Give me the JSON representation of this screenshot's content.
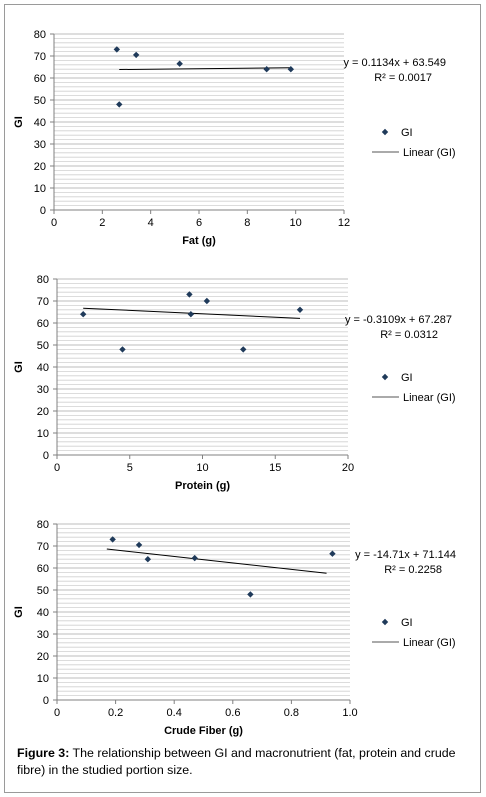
{
  "caption": {
    "label": "Figure 3:",
    "text": " The relationship between GI and macronutrient (fat, protein and crude fibre) in the studied portion size."
  },
  "chart_data": [
    {
      "type": "scatter",
      "xlabel": "Fat (g)",
      "ylabel": "GI",
      "xlim": [
        0,
        12
      ],
      "ylim": [
        0,
        80
      ],
      "x_ticks": [
        0,
        2,
        4,
        6,
        8,
        10,
        12
      ],
      "y_ticks": [
        0,
        10,
        20,
        30,
        40,
        50,
        60,
        70,
        80
      ],
      "grid": true,
      "legend_position": "right",
      "series": [
        {
          "name": "GI",
          "marker_color": "#1f3a5a",
          "points": [
            [
              2.6,
              73
            ],
            [
              3.4,
              70.5
            ],
            [
              2.7,
              48
            ],
            [
              5.2,
              66.5
            ],
            [
              8.8,
              64
            ],
            [
              9.8,
              64
            ]
          ]
        }
      ],
      "trendline": {
        "name": "Linear (GI)",
        "slope": 0.1134,
        "intercept": 63.549,
        "x_range": [
          2.7,
          9.8
        ],
        "equation_label": "y = 0.1134x + 63.549",
        "r2_label": "R² = 0.0017"
      }
    },
    {
      "type": "scatter",
      "xlabel": "Protein (g)",
      "ylabel": "GI",
      "xlim": [
        0,
        20
      ],
      "ylim": [
        0,
        80
      ],
      "x_ticks": [
        0,
        5,
        10,
        15,
        20
      ],
      "y_ticks": [
        0,
        10,
        20,
        30,
        40,
        50,
        60,
        70,
        80
      ],
      "grid": true,
      "legend_position": "right",
      "series": [
        {
          "name": "GI",
          "marker_color": "#1f3a5a",
          "points": [
            [
              1.8,
              64
            ],
            [
              4.5,
              48
            ],
            [
              9.1,
              73
            ],
            [
              9.2,
              64
            ],
            [
              10.3,
              70
            ],
            [
              12.8,
              48
            ],
            [
              16.7,
              66
            ]
          ]
        }
      ],
      "trendline": {
        "name": "Linear (GI)",
        "slope": -0.3109,
        "intercept": 67.287,
        "x_range": [
          1.8,
          16.7
        ],
        "equation_label": "y = -0.3109x + 67.287",
        "r2_label": "R² = 0.0312"
      }
    },
    {
      "type": "scatter",
      "xlabel": "Crude Fiber (g)",
      "ylabel": "GI",
      "xlim": [
        0,
        1
      ],
      "ylim": [
        0,
        80
      ],
      "x_ticks": [
        0,
        0.2,
        0.4,
        0.6,
        0.8,
        1
      ],
      "y_ticks": [
        0,
        10,
        20,
        30,
        40,
        50,
        60,
        70,
        80
      ],
      "grid": true,
      "legend_position": "right",
      "series": [
        {
          "name": "GI",
          "marker_color": "#1f3a5a",
          "points": [
            [
              0.19,
              73
            ],
            [
              0.28,
              70.5
            ],
            [
              0.31,
              64
            ],
            [
              0.47,
              64.5
            ],
            [
              0.66,
              48
            ],
            [
              0.94,
              66.5
            ]
          ]
        }
      ],
      "trendline": {
        "name": "Linear (GI)",
        "slope": -14.71,
        "intercept": 71.144,
        "x_range": [
          0.17,
          0.92
        ],
        "equation_label": "y = -14.71x + 71.144",
        "r2_label": "R² = 0.2258"
      }
    }
  ]
}
